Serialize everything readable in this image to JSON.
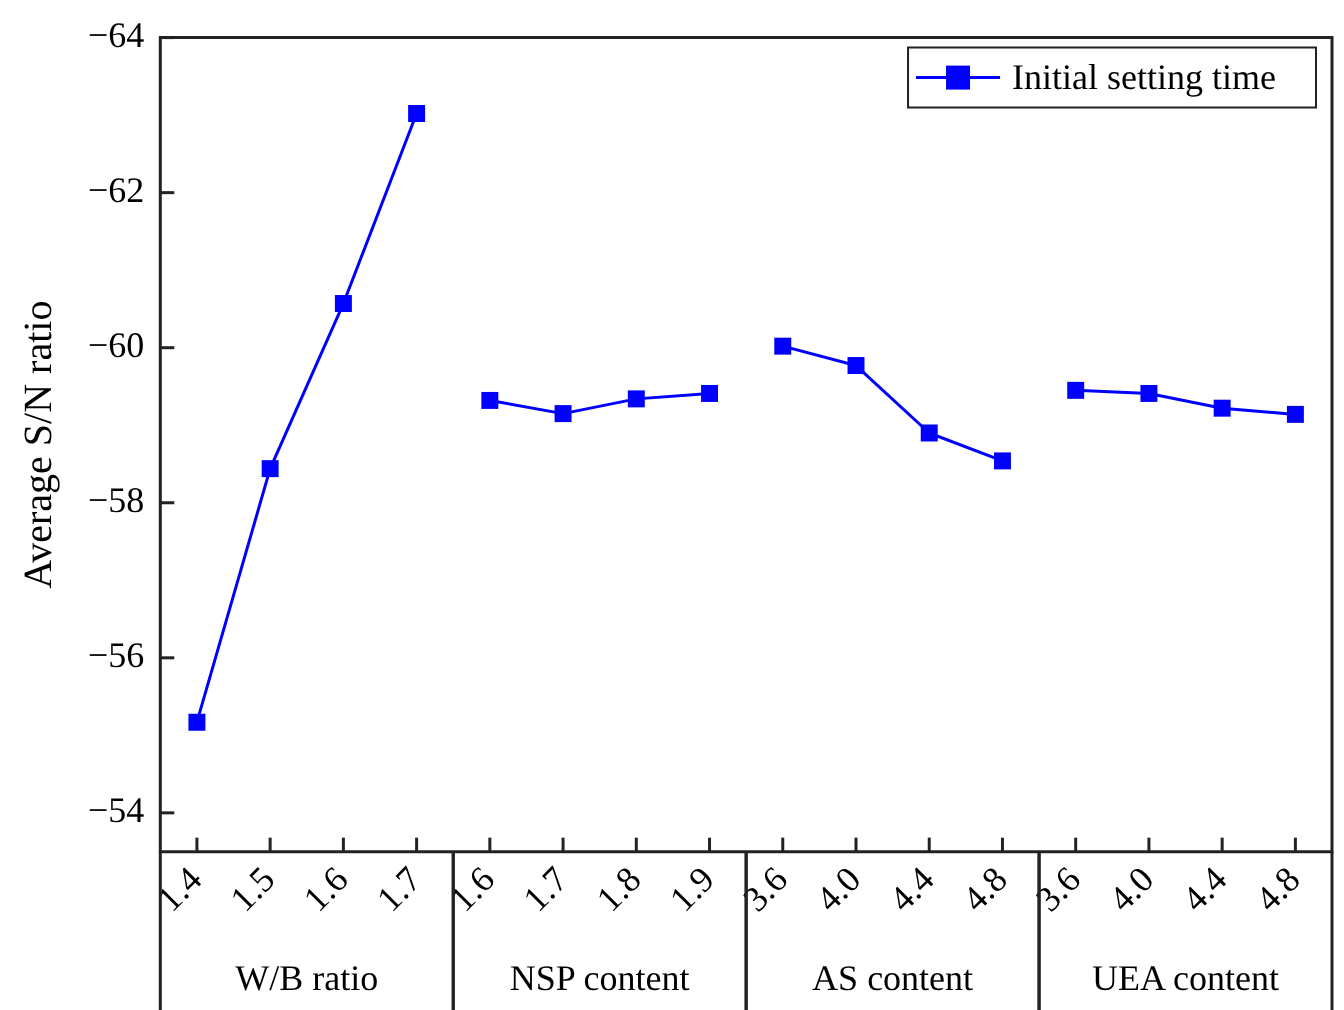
{
  "chart_data": {
    "type": "line",
    "ylabel": "Average S/N ratio",
    "categories": [
      "1.4",
      "1.5",
      "1.6",
      "1.7",
      "1.6",
      "1.7",
      "1.8",
      "1.9",
      "3.6",
      "4.0",
      "4.4",
      "4.8",
      "3.6",
      "4.0",
      "4.4",
      "4.8"
    ],
    "series": [
      {
        "name": "Initial setting time",
        "color": "#0000ff",
        "values": [
          -55.17,
          -58.44,
          -60.57,
          -63.02,
          null,
          null,
          null,
          null,
          null,
          null,
          null,
          null,
          null,
          null,
          null,
          null
        ]
      },
      {
        "color": "#0000ff",
        "values": [
          null,
          null,
          null,
          null,
          -59.32,
          -59.15,
          -59.34,
          -59.41,
          null,
          null,
          null,
          null,
          null,
          null,
          null,
          null
        ]
      },
      {
        "color": "#0000ff",
        "values": [
          null,
          null,
          null,
          null,
          null,
          null,
          null,
          null,
          -60.02,
          -59.77,
          -58.9,
          -58.54,
          null,
          null,
          null,
          null
        ]
      },
      {
        "color": "#0000ff",
        "values": [
          null,
          null,
          null,
          null,
          null,
          null,
          null,
          null,
          null,
          null,
          null,
          null,
          -59.45,
          -59.41,
          -59.22,
          -59.14
        ]
      }
    ],
    "annotations": [
      "W/B ratio",
      "NSP content",
      "AS content",
      "UEA content"
    ],
    "ylim": [
      -53.5,
      -64
    ],
    "yticks": [
      -54,
      -56,
      -58,
      -60,
      -62,
      -64
    ],
    "marker": "square",
    "line_style": "solid",
    "legend": "top right",
    "grid": false
  }
}
